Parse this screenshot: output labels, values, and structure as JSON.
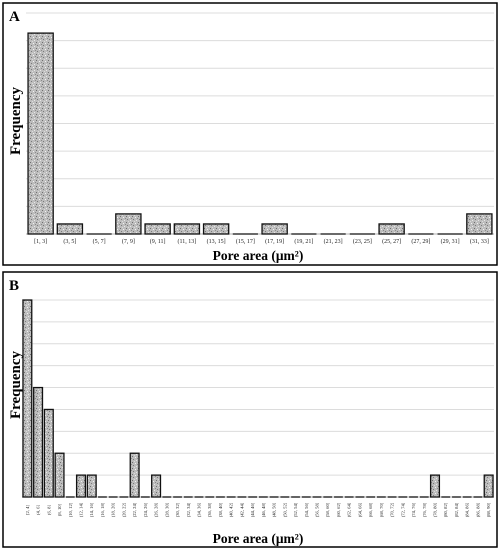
{
  "chart_data": [
    {
      "panel": "A",
      "type": "bar",
      "xlabel": "Pore area  (μm²)",
      "ylabel": "Frequency",
      "categories": [
        "[1, 3]",
        "(3, 5]",
        "(5, 7]",
        "(7, 9]",
        "(9, 11]",
        "(11, 13]",
        "(13, 15]",
        "(15, 17]",
        "(17, 19]",
        "(19, 21]",
        "(21, 23]",
        "(23, 25]",
        "(25, 27]",
        "(27, 29]",
        "(29, 31]",
        "(31, 33]"
      ],
      "values": [
        20,
        1,
        0,
        2,
        1,
        1,
        1,
        0,
        1,
        0,
        0,
        0,
        1,
        0,
        0,
        2
      ],
      "ylim": [
        0,
        22
      ],
      "grid": true
    },
    {
      "panel": "B",
      "type": "bar",
      "xlabel": "Pore area (μm²)",
      "ylabel": "Frequency",
      "categories": [
        "[2, 4]",
        "(4, 6]",
        "(6, 8]",
        "(8, 10]",
        "(10, 12]",
        "(12, 14]",
        "(14, 16]",
        "(16, 18]",
        "(18, 20]",
        "(20, 22]",
        "(22, 24]",
        "(24, 26]",
        "(26, 28]",
        "(28, 30]",
        "(30, 32]",
        "(32, 34]",
        "(34, 36]",
        "(36, 38]",
        "(38, 40]",
        "(40, 42]",
        "(42, 44]",
        "(44, 46]",
        "(46, 48]",
        "(48, 50]",
        "(50, 52]",
        "(52, 54]",
        "(54, 56]",
        "(56, 58]",
        "(58, 60]",
        "(60, 62]",
        "(62, 64]",
        "(64, 66]",
        "(66, 68]",
        "(68, 70]",
        "(70, 72]",
        "(72, 74]",
        "(74, 76]",
        "(76, 78]",
        "(78, 80]",
        "(80, 82]",
        "(82, 84]",
        "(84, 86]",
        "(86, 88]",
        "(88, 90]"
      ],
      "values": [
        9,
        5,
        4,
        2,
        0,
        1,
        1,
        0,
        0,
        0,
        2,
        0,
        1,
        0,
        0,
        0,
        0,
        0,
        0,
        0,
        0,
        0,
        0,
        0,
        0,
        0,
        0,
        0,
        0,
        0,
        0,
        0,
        0,
        0,
        0,
        0,
        0,
        0,
        1,
        0,
        0,
        0,
        0,
        1
      ],
      "ylim": [
        0,
        9
      ],
      "grid": true
    }
  ]
}
